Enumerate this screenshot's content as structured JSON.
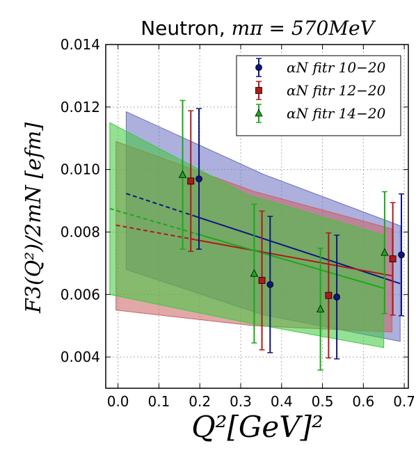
{
  "chart_data": {
    "type": "scatter",
    "title_prefix": "Neutron, ",
    "title_math": "mπ = 570MeV",
    "xlabel": "Q²[GeV]²",
    "ylabel": "F3(Q²)/2mN [efm]",
    "xlim": [
      -0.03,
      0.71
    ],
    "ylim": [
      0.003,
      0.014
    ],
    "xticks": [
      "0.0",
      "0.1",
      "0.2",
      "0.3",
      "0.4",
      "0.5",
      "0.6",
      "0.7"
    ],
    "yticks": [
      "0.004",
      "0.006",
      "0.008",
      "0.010",
      "0.012",
      "0.014"
    ],
    "grid": true,
    "legend_position": "top-right",
    "series": [
      {
        "name": "αN fitr 10−20",
        "color": "#0d1580",
        "band_color": "#6a6fc0",
        "marker": "circle",
        "points": [
          {
            "x": 0.198,
            "y": 0.0097,
            "err": 0.00225
          },
          {
            "x": 0.372,
            "y": 0.00632,
            "err": 0.00218
          },
          {
            "x": 0.535,
            "y": 0.00592,
            "err": 0.00198
          },
          {
            "x": 0.693,
            "y": 0.00727,
            "err": 0.00195
          }
        ],
        "fit_x": [
          0.02,
          0.69
        ],
        "fit_y": [
          0.00923,
          0.00635
        ],
        "band_upper": [
          0.01185,
          0.00985,
          0.0082
        ],
        "band_lower": [
          0.0068,
          0.00535,
          0.0045
        ]
      },
      {
        "name": "αN fitr 12−20",
        "color": "#b0181b",
        "band_color": "#c86060",
        "marker": "square",
        "points": [
          {
            "x": 0.178,
            "y": 0.00963,
            "err": 0.00225
          },
          {
            "x": 0.352,
            "y": 0.00645,
            "err": 0.00222
          },
          {
            "x": 0.515,
            "y": 0.00597,
            "err": 0.002
          },
          {
            "x": 0.672,
            "y": 0.00714,
            "err": 0.0018
          }
        ],
        "fit_x": [
          -0.005,
          0.67
        ],
        "fit_y": [
          0.00822,
          0.0066
        ],
        "band_upper": [
          0.0109,
          0.0093,
          0.0081
        ],
        "band_lower": [
          0.0055,
          0.005,
          0.0048
        ]
      },
      {
        "name": "αN fitr 14−20",
        "color": "#1aa81a",
        "band_color": "#3cc83c",
        "marker": "triangle",
        "points": [
          {
            "x": 0.158,
            "y": 0.00983,
            "err": 0.00238
          },
          {
            "x": 0.333,
            "y": 0.00667,
            "err": 0.00222
          },
          {
            "x": 0.495,
            "y": 0.00553,
            "err": 0.00195
          },
          {
            "x": 0.652,
            "y": 0.00734,
            "err": 0.00195
          }
        ],
        "fit_x": [
          -0.02,
          0.65
        ],
        "fit_y": [
          0.00875,
          0.0062
        ],
        "band_upper": [
          0.0115,
          0.0092,
          0.0079
        ],
        "band_lower": [
          0.006,
          0.0051,
          0.0043
        ]
      }
    ]
  }
}
